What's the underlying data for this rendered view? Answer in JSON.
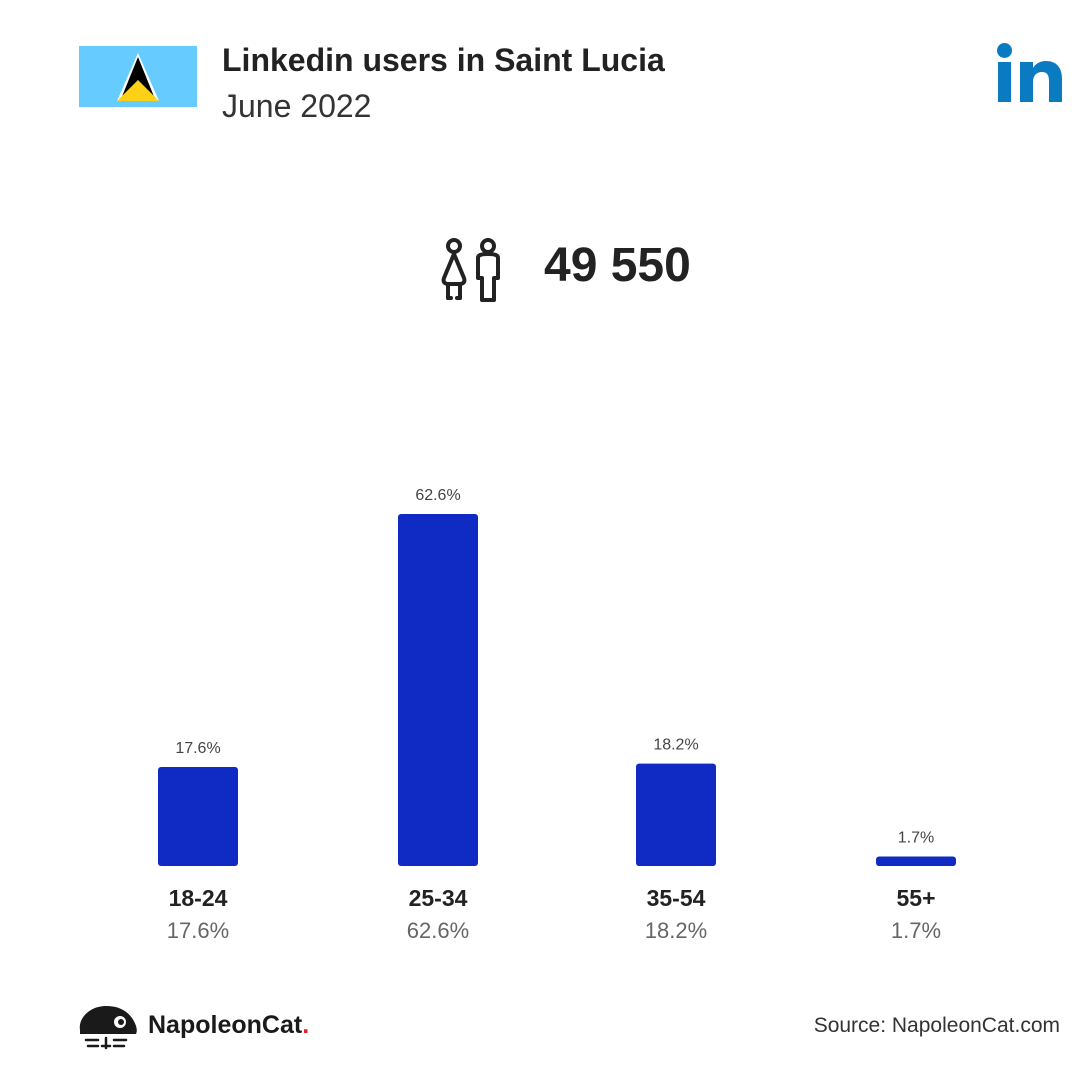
{
  "header": {
    "title": "Linkedin users in Saint Lucia",
    "subtitle": "June 2022"
  },
  "summary": {
    "total_users": "49 550",
    "icon": "people-icon"
  },
  "brand": {
    "logo_icon": "linkedin-icon",
    "logo_color": "#0a7bc1",
    "flag_icon": "saint-lucia-flag-icon"
  },
  "colors": {
    "bar": "#0f2bc4",
    "flag_blue": "#66ccff",
    "flag_yellow": "#fcd116"
  },
  "chart_data": {
    "type": "bar",
    "categories": [
      "18-24",
      "25-34",
      "35-54",
      "55+"
    ],
    "values": [
      17.6,
      62.6,
      18.2,
      1.7
    ],
    "value_labels": [
      "17.6%",
      "62.6%",
      "18.2%",
      "1.7%"
    ],
    "unit": "%",
    "ylim": [
      0,
      62.6
    ],
    "grid": false
  },
  "footer": {
    "brand_name": "NapoleonCat",
    "brand_dot": ".",
    "source": "Source: NapoleonCat.com"
  }
}
